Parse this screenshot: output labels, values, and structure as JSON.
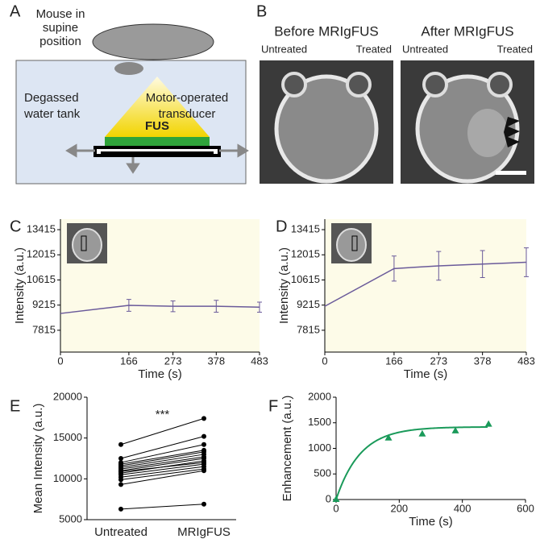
{
  "panels": {
    "labels": [
      "A",
      "B",
      "C",
      "D",
      "E",
      "F"
    ]
  },
  "diagram": {
    "mouse": [
      "Mouse in",
      "supine",
      "position"
    ],
    "tank": [
      "Degassed",
      "water tank"
    ],
    "transducer": [
      "Motor-operated",
      "transducer"
    ],
    "fus": "FUS"
  },
  "images": [
    {
      "title": "Before MRIgFUS",
      "left": "Untreated",
      "right": "Treated"
    },
    {
      "title": "After MRIgFUS",
      "left": "Untreated",
      "right": "Treated"
    }
  ],
  "chart_data": [
    {
      "type": "line",
      "x": [
        0,
        166,
        273,
        378,
        483
      ],
      "values": [
        8750,
        9200,
        9150,
        9150,
        9100
      ],
      "errors": [
        null,
        330,
        300,
        330,
        280
      ],
      "color": "#6a5a9a",
      "xlabel": "Time (s)",
      "ylabel": "Intensity (a.u.)",
      "xlim": [
        0,
        483
      ],
      "xticks": [
        0,
        166,
        273,
        378,
        483
      ],
      "ylim": [
        6600,
        14000
      ],
      "yticks": [
        7815,
        9215,
        10615,
        12015,
        13415
      ],
      "background": "#fdfbe8"
    },
    {
      "type": "line",
      "x": [
        0,
        166,
        273,
        378,
        483
      ],
      "values": [
        9150,
        11250,
        11400,
        11500,
        11600
      ],
      "errors": [
        null,
        700,
        800,
        750,
        800
      ],
      "color": "#6a5a9a",
      "xlabel": "Time (s)",
      "ylabel": "Intensity (a.u.)",
      "xlim": [
        0,
        483
      ],
      "xticks": [
        0,
        166,
        273,
        378,
        483
      ],
      "ylim": [
        6600,
        14000
      ],
      "yticks": [
        7815,
        9215,
        10615,
        12015,
        13415
      ],
      "background": "#fdfbe8"
    },
    {
      "type": "paired",
      "categories": [
        "Untreated",
        "MRIgFUS"
      ],
      "pairs": [
        [
          6300,
          6900
        ],
        [
          9300,
          11000
        ],
        [
          9900,
          11200
        ],
        [
          10200,
          11500
        ],
        [
          10500,
          11800
        ],
        [
          10700,
          12200
        ],
        [
          10900,
          12000
        ],
        [
          11000,
          12500
        ],
        [
          11200,
          12700
        ],
        [
          11400,
          13000
        ],
        [
          11600,
          13300
        ],
        [
          11800,
          13500
        ],
        [
          12000,
          14200
        ],
        [
          12500,
          15200
        ],
        [
          14200,
          17400
        ]
      ],
      "annotation": "***",
      "color": "#000000",
      "ylabel": "Mean Intensity (a.u.)",
      "ylim": [
        5000,
        20000
      ],
      "yticks": [
        5000,
        10000,
        15000,
        20000
      ]
    },
    {
      "type": "scatter",
      "x": [
        0,
        166,
        273,
        378,
        483
      ],
      "values": [
        0,
        1200,
        1280,
        1340,
        1470
      ],
      "fit": {
        "plateau": 1420,
        "rate": 0.013
      },
      "color": "#1a9a5a",
      "xlabel": "Time (s)",
      "ylabel": "Enhancement (a.u.)",
      "xlim": [
        0,
        600
      ],
      "xticks": [
        0,
        200,
        400,
        600
      ],
      "ylim": [
        0,
        2000
      ],
      "yticks": [
        0,
        500,
        1000,
        1500,
        2000
      ]
    }
  ]
}
